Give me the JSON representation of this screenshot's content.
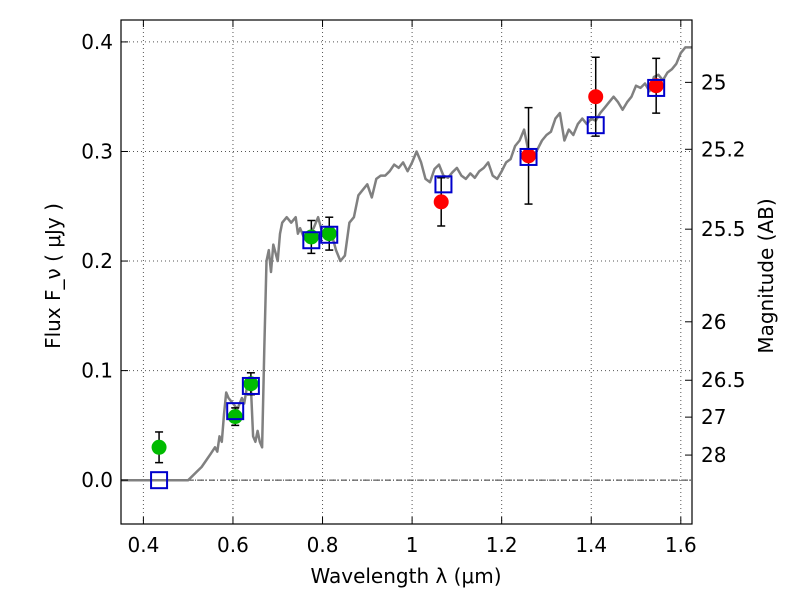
{
  "chart_data": {
    "type": "scatter",
    "title": "",
    "xlabel": "Wavelength  λ (μm)",
    "ylabel": "Flux  F_ν  ( μJy )",
    "y2label": "Magnitude (AB)",
    "xlim": [
      0.35,
      1.625
    ],
    "ylim": [
      -0.04,
      0.42
    ],
    "grid": true,
    "x_ticks": [
      0.4,
      0.6,
      0.8,
      1.0,
      1.2,
      1.4,
      1.6
    ],
    "x_tick_labels": [
      "0.4",
      "0.6",
      "0.8",
      "1",
      "1.2",
      "1.4",
      "1.6"
    ],
    "y_ticks": [
      0.0,
      0.1,
      0.2,
      0.3,
      0.4
    ],
    "y_tick_labels": [
      "0.0",
      "0.1",
      "0.2",
      "0.3",
      "0.4"
    ],
    "mag_ticks": [
      {
        "label": "25",
        "mag": 25
      },
      {
        "label": "25.2",
        "mag": 25.2
      },
      {
        "label": "25.5",
        "mag": 25.5
      },
      {
        "label": "26",
        "mag": 26
      },
      {
        "label": "26.5",
        "mag": 26.5
      },
      {
        "label": "27",
        "mag": 27
      },
      {
        "label": "28",
        "mag": 28
      }
    ],
    "zero_line": 0.0,
    "colors": {
      "model": "#808080",
      "green": "#00bb00",
      "red": "#ff0000",
      "squares": "#0000cc",
      "errorbars": "#000000",
      "grid": "#555555"
    },
    "series": [
      {
        "style": "model-line",
        "x": [
          0.35,
          0.5,
          0.52,
          0.53,
          0.54,
          0.55,
          0.56,
          0.565,
          0.57,
          0.575,
          0.58,
          0.585,
          0.59,
          0.6,
          0.61,
          0.62,
          0.625,
          0.63,
          0.635,
          0.64,
          0.645,
          0.65,
          0.655,
          0.66,
          0.665,
          0.67,
          0.675,
          0.68,
          0.685,
          0.69,
          0.7,
          0.705,
          0.71,
          0.72,
          0.73,
          0.74,
          0.745,
          0.75,
          0.76,
          0.77,
          0.78,
          0.79,
          0.8,
          0.81,
          0.82,
          0.83,
          0.84,
          0.85,
          0.86,
          0.87,
          0.88,
          0.89,
          0.9,
          0.91,
          0.92,
          0.93,
          0.94,
          0.95,
          0.96,
          0.97,
          0.98,
          0.99,
          1.0,
          1.01,
          1.02,
          1.03,
          1.04,
          1.05,
          1.06,
          1.07,
          1.08,
          1.09,
          1.1,
          1.11,
          1.12,
          1.13,
          1.14,
          1.15,
          1.16,
          1.17,
          1.18,
          1.19,
          1.2,
          1.21,
          1.22,
          1.23,
          1.24,
          1.25,
          1.26,
          1.27,
          1.28,
          1.29,
          1.3,
          1.31,
          1.32,
          1.33,
          1.34,
          1.35,
          1.36,
          1.37,
          1.38,
          1.39,
          1.4,
          1.41,
          1.42,
          1.43,
          1.44,
          1.45,
          1.46,
          1.47,
          1.48,
          1.49,
          1.5,
          1.51,
          1.52,
          1.53,
          1.54,
          1.55,
          1.56,
          1.57,
          1.58,
          1.59,
          1.6,
          1.61,
          1.625
        ],
        "y": [
          0.0,
          0.0,
          0.008,
          0.012,
          0.018,
          0.024,
          0.03,
          0.026,
          0.04,
          0.035,
          0.06,
          0.08,
          0.075,
          0.07,
          0.065,
          0.075,
          0.07,
          0.082,
          0.09,
          0.085,
          0.04,
          0.035,
          0.045,
          0.035,
          0.03,
          0.12,
          0.2,
          0.21,
          0.19,
          0.215,
          0.2,
          0.225,
          0.235,
          0.24,
          0.235,
          0.24,
          0.225,
          0.23,
          0.22,
          0.225,
          0.23,
          0.24,
          0.225,
          0.22,
          0.225,
          0.21,
          0.2,
          0.205,
          0.235,
          0.24,
          0.26,
          0.265,
          0.27,
          0.258,
          0.275,
          0.278,
          0.278,
          0.282,
          0.288,
          0.285,
          0.29,
          0.282,
          0.29,
          0.3,
          0.29,
          0.275,
          0.272,
          0.284,
          0.288,
          0.278,
          0.276,
          0.281,
          0.285,
          0.278,
          0.275,
          0.28,
          0.276,
          0.282,
          0.285,
          0.29,
          0.278,
          0.275,
          0.282,
          0.29,
          0.293,
          0.305,
          0.31,
          0.32,
          0.3,
          0.295,
          0.302,
          0.31,
          0.315,
          0.318,
          0.33,
          0.335,
          0.31,
          0.32,
          0.315,
          0.325,
          0.33,
          0.325,
          0.33,
          0.328,
          0.335,
          0.34,
          0.345,
          0.35,
          0.345,
          0.338,
          0.345,
          0.35,
          0.36,
          0.358,
          0.362,
          0.355,
          0.368,
          0.37,
          0.365,
          0.372,
          0.375,
          0.38,
          0.39,
          0.395,
          0.395
        ]
      },
      {
        "style": "green-points",
        "x": [
          0.435,
          0.605,
          0.64,
          0.775,
          0.815
        ],
        "y": [
          0.03,
          0.058,
          0.088,
          0.222,
          0.225
        ],
        "yerr": [
          0.014,
          0.008,
          0.01,
          0.015,
          0.015
        ]
      },
      {
        "style": "red-points",
        "x": [
          1.065,
          1.26,
          1.41,
          1.545
        ],
        "y": [
          0.254,
          0.296,
          0.35,
          0.36
        ],
        "yerr": [
          0.022,
          0.044,
          0.036,
          0.025
        ]
      },
      {
        "style": "blue-squares",
        "x": [
          0.435,
          0.605,
          0.64,
          0.775,
          0.815,
          1.07,
          1.26,
          1.41,
          1.545
        ],
        "y": [
          0.0,
          0.063,
          0.086,
          0.219,
          0.224,
          0.27,
          0.295,
          0.324,
          0.358
        ]
      }
    ]
  }
}
